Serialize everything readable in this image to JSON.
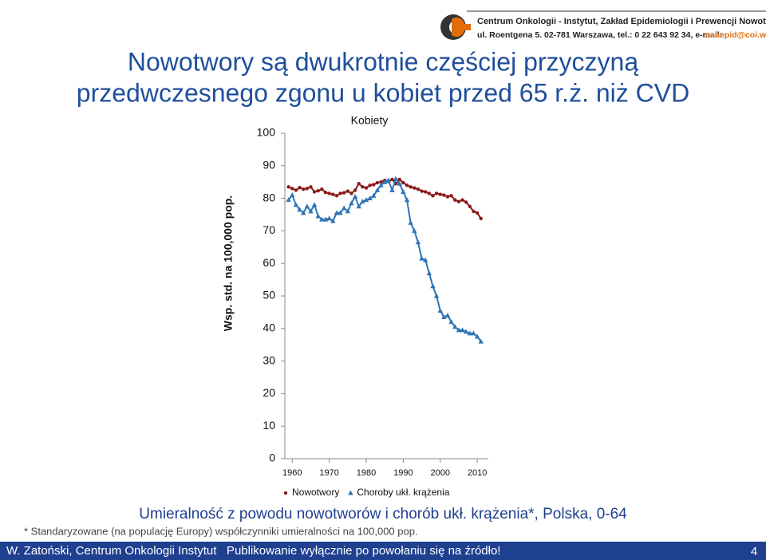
{
  "header": {
    "organization": "Centrum Onkologii - Instytut, Zakład Epidemiologii i Prewencji Nowotworów",
    "address": "ul. Roentgena 5. 02-781 Warszawa, tel.: 0 22 643 92 34, e-mail:",
    "email": "canepid@coi.waw.pl"
  },
  "slide_title": [
    "Nowotwory są dwukrotnie częściej przyczyną",
    "przedwczesnego zgonu u kobiet przed 65 r.ż. niż CVD"
  ],
  "chart_data": {
    "type": "line",
    "title": "Kobiety",
    "y_label": "Wsp. std. na 100,000 pop.",
    "x": [
      1959,
      1960,
      1961,
      1962,
      1963,
      1964,
      1965,
      1966,
      1967,
      1968,
      1969,
      1970,
      1971,
      1972,
      1973,
      1974,
      1975,
      1976,
      1977,
      1978,
      1979,
      1980,
      1981,
      1982,
      1983,
      1984,
      1985,
      1986,
      1987,
      1988,
      1989,
      1990,
      1991,
      1992,
      1993,
      1994,
      1995,
      1996,
      1997,
      1998,
      1999,
      2000,
      2001,
      2002,
      2003,
      2004,
      2005,
      2006,
      2007,
      2008,
      2009,
      2010,
      2011
    ],
    "xlim": [
      1958,
      2013
    ],
    "xticks": [
      1960,
      1970,
      1980,
      1990,
      2000,
      2010
    ],
    "ylim": [
      0,
      100
    ],
    "yticks": [
      0,
      10,
      20,
      30,
      40,
      50,
      60,
      70,
      80,
      90,
      100
    ],
    "grid": false,
    "legend": "bottom",
    "series": [
      {
        "name": "Nowotwory",
        "color": "#8b1a1a",
        "marker": "circle",
        "values": [
          83.5,
          83.0,
          82.5,
          83.3,
          82.8,
          83.0,
          83.5,
          82.0,
          82.3,
          82.8,
          81.8,
          81.5,
          81.2,
          80.8,
          81.5,
          81.7,
          82.2,
          81.5,
          82.5,
          84.5,
          83.5,
          83.2,
          84.0,
          84.2,
          84.8,
          85.0,
          85.5,
          85.2,
          85.8,
          84.5,
          85.8,
          84.8,
          84.0,
          83.5,
          83.2,
          82.8,
          82.2,
          82.0,
          81.5,
          80.8,
          81.5,
          81.2,
          81.0,
          80.5,
          80.8,
          79.5,
          79.0,
          79.5,
          78.8,
          77.5,
          76.0,
          75.5,
          73.8
        ]
      },
      {
        "name": "Choroby ukł. krążenia",
        "color": "#2e75b6",
        "marker": "triangle",
        "values": [
          79.5,
          81.0,
          78.0,
          76.5,
          75.5,
          77.5,
          76.0,
          78.0,
          74.5,
          73.5,
          73.5,
          73.8,
          73.0,
          75.5,
          75.5,
          77.0,
          76.0,
          78.5,
          80.5,
          77.5,
          79.0,
          79.5,
          80.0,
          80.8,
          82.5,
          84.0,
          85.0,
          85.5,
          82.5,
          86.0,
          84.5,
          82.0,
          79.5,
          72.5,
          70.0,
          66.5,
          61.5,
          61.0,
          57.0,
          53.0,
          50.0,
          45.5,
          43.5,
          44.0,
          42.0,
          40.5,
          39.5,
          39.5,
          39.0,
          38.5,
          38.5,
          37.5,
          36.0
        ]
      }
    ]
  },
  "caption": "Umieralność z powodu nowotworów i chorób ukł. krążenia*, Polska, 0-64",
  "footnote": "* Standaryzowane (na populację Europy) współczynniki umieralności na 100,000 pop.",
  "footer": {
    "text": "W. Zatoński, Centrum Onkologii Instytut   Publikowanie wyłącznie po powołaniu się na źródło!",
    "page": "4"
  }
}
